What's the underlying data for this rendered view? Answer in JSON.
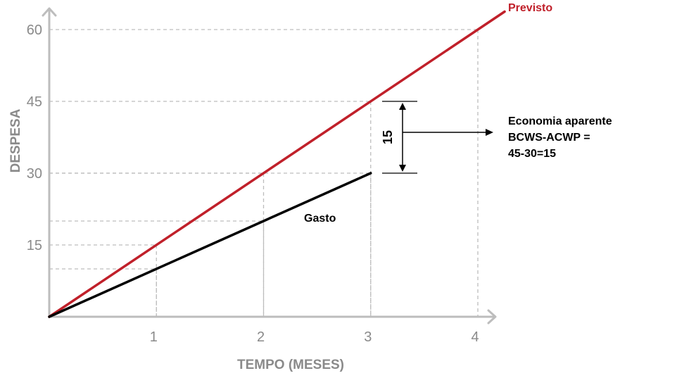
{
  "chart_data": {
    "type": "line",
    "xlabel": "TEMPO (MESES)",
    "ylabel": "DESPESA",
    "x_ticks": [
      1,
      2,
      3,
      4
    ],
    "y_ticks": [
      15,
      30,
      45,
      60
    ],
    "xlim": [
      0,
      4.2
    ],
    "ylim": [
      0,
      63
    ],
    "grid": "dashed guides at data points",
    "series": [
      {
        "name": "Previsto",
        "color": "#c0202a",
        "x": [
          0,
          4.25
        ],
        "y": [
          0,
          63.75
        ]
      },
      {
        "name": "Gasto",
        "color": "#000000",
        "x": [
          0,
          3
        ],
        "y": [
          0,
          30
        ]
      }
    ],
    "guides": [
      {
        "x": 1,
        "y": 15
      },
      {
        "x": 2,
        "y": 30
      },
      {
        "x": 3,
        "y": 45
      },
      {
        "x": 4,
        "y": 60
      },
      {
        "x": 1,
        "y": 10
      },
      {
        "x": 2,
        "y": 20
      },
      {
        "x": 3,
        "y": 30
      }
    ],
    "annotation": {
      "value_label": "15",
      "from": 45,
      "to": 30,
      "at_x": 3,
      "lines": [
        "Economia aparente",
        "BCWS-ACWP =",
        "45-30=15"
      ]
    }
  }
}
